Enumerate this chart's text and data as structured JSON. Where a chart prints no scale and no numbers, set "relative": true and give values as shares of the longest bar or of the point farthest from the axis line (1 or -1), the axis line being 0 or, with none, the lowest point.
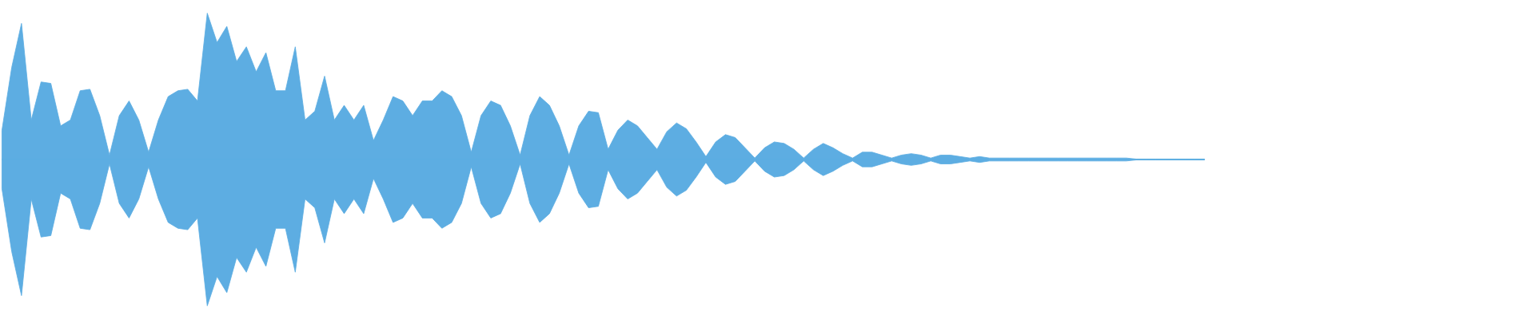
{
  "chart_data": {
    "type": "area",
    "relative": true,
    "ref_lines": [
      {
        "axis": "y",
        "value": 0,
        "color": "#5dade2"
      }
    ],
    "categories": [
      null,
      null,
      null,
      null,
      null,
      null,
      null,
      null,
      null,
      null,
      null,
      null,
      null,
      null,
      null,
      null,
      null,
      null,
      null,
      null,
      null,
      null,
      null,
      null,
      null,
      null,
      null,
      null,
      null,
      null,
      null,
      null,
      null,
      null,
      null,
      null,
      null,
      null,
      null,
      null,
      null,
      null,
      null,
      null,
      null,
      null,
      null,
      null,
      null,
      null,
      null,
      null,
      null,
      null,
      null,
      null,
      null,
      null,
      null,
      null,
      null,
      null,
      null,
      null,
      null,
      null,
      null,
      null,
      null,
      null,
      null,
      null,
      null,
      null,
      null,
      null,
      null,
      null,
      null,
      null,
      null,
      null,
      null,
      null,
      null,
      null,
      null,
      null,
      null,
      null,
      null,
      null,
      null,
      null,
      null,
      null,
      null,
      null,
      null,
      null,
      null,
      null,
      null,
      null,
      null,
      null,
      null,
      null,
      null,
      null,
      null,
      null,
      null,
      null,
      null,
      null,
      null,
      null,
      null,
      null,
      null,
      null,
      null,
      null,
      null,
      null,
      null,
      null,
      null,
      null,
      null,
      null,
      null,
      null,
      null,
      null,
      null,
      null,
      null,
      null,
      null,
      null,
      null,
      null,
      null,
      null,
      null,
      null,
      null,
      null,
      null,
      null,
      null,
      null,
      null,
      null,
      null
    ],
    "series": [
      {
        "color": "#5dade2",
        "values": [
          0.2,
          0.63,
          0.93,
          0.27,
          0.53,
          0.52,
          0.23,
          0.27,
          0.47,
          0.48,
          0.3,
          0.03,
          0.3,
          0.4,
          0.27,
          0.05,
          0.27,
          0.43,
          0.47,
          0.48,
          0.4,
          1,
          0.8,
          0.91,
          0.67,
          0.77,
          0.6,
          0.73,
          0.47,
          0.47,
          0.77,
          0.27,
          0.33,
          0.57,
          0.27,
          0.37,
          0.27,
          0.37,
          0.13,
          0.27,
          0.43,
          0.4,
          0.3,
          0.4,
          0.4,
          0.47,
          0.43,
          0.3,
          0.05,
          0.3,
          0.4,
          0.37,
          0.23,
          0.03,
          0.3,
          0.43,
          0.37,
          0.23,
          0.03,
          0.23,
          0.33,
          0.32,
          0.07,
          0.2,
          0.27,
          0.23,
          0.15,
          0.07,
          0.19,
          0.25,
          0.21,
          0.12,
          0.02,
          0.12,
          0.17,
          0.15,
          0.08,
          0.01,
          0.08,
          0.12,
          0.11,
          0.07,
          0.01,
          0.07,
          0.11,
          0.08,
          0.04,
          0.01,
          0.05,
          0.05,
          0.03,
          0.01,
          0.03,
          0.04,
          0.03,
          0.01,
          0.03,
          0.03,
          0.02,
          0.01,
          0.02,
          0.01,
          0.01,
          0.01,
          0.01,
          0.01,
          0.01,
          0.01,
          0.01,
          0.01,
          0.01,
          0.01,
          0.01,
          0.01,
          0.01,
          0.01,
          0.003,
          0.003,
          0.003,
          0.003,
          0.003,
          0.003,
          0.003,
          0.003,
          null,
          null,
          null,
          null,
          null,
          null,
          null,
          null,
          null,
          null,
          null,
          null,
          null,
          null,
          null,
          null,
          null,
          null,
          null,
          null,
          null,
          null,
          null,
          null,
          null,
          null,
          null,
          null,
          null,
          null,
          null,
          null,
          null
        ]
      },
      {
        "color": "#5dade2",
        "values": [
          -0.2,
          -0.63,
          -0.93,
          -0.27,
          -0.53,
          -0.52,
          -0.23,
          -0.27,
          -0.47,
          -0.48,
          -0.3,
          -0.03,
          -0.3,
          -0.4,
          -0.27,
          -0.05,
          -0.27,
          -0.43,
          -0.47,
          -0.48,
          -0.4,
          -1,
          -0.8,
          -0.91,
          -0.67,
          -0.77,
          -0.6,
          -0.73,
          -0.47,
          -0.47,
          -0.77,
          -0.27,
          -0.33,
          -0.57,
          -0.27,
          -0.37,
          -0.27,
          -0.37,
          -0.13,
          -0.27,
          -0.43,
          -0.4,
          -0.3,
          -0.4,
          -0.4,
          -0.47,
          -0.43,
          -0.3,
          -0.05,
          -0.3,
          -0.4,
          -0.37,
          -0.23,
          -0.03,
          -0.3,
          -0.43,
          -0.37,
          -0.23,
          -0.03,
          -0.23,
          -0.33,
          -0.32,
          -0.07,
          -0.2,
          -0.27,
          -0.23,
          -0.15,
          -0.07,
          -0.19,
          -0.25,
          -0.21,
          -0.12,
          -0.02,
          -0.12,
          -0.17,
          -0.15,
          -0.08,
          -0.01,
          -0.08,
          -0.12,
          -0.11,
          -0.07,
          -0.01,
          -0.07,
          -0.11,
          -0.08,
          -0.04,
          -0.01,
          -0.05,
          -0.05,
          -0.03,
          -0.01,
          -0.03,
          -0.04,
          -0.03,
          -0.01,
          -0.03,
          -0.03,
          -0.02,
          -0.01,
          -0.02,
          -0.01,
          -0.01,
          -0.01,
          -0.01,
          -0.01,
          -0.01,
          -0.01,
          -0.01,
          -0.01,
          -0.01,
          -0.01,
          -0.01,
          -0.01,
          -0.01,
          -0.01,
          -0.003,
          -0.003,
          -0.003,
          -0.003,
          -0.003,
          -0.003,
          -0.003,
          -0.003,
          null,
          null,
          null,
          null,
          null,
          null,
          null,
          null,
          null,
          null,
          null,
          null,
          null,
          null,
          null,
          null,
          null,
          null,
          null,
          null,
          null,
          null,
          null,
          null,
          null,
          null,
          null,
          null,
          null,
          null,
          null,
          null,
          null
        ]
      }
    ]
  }
}
